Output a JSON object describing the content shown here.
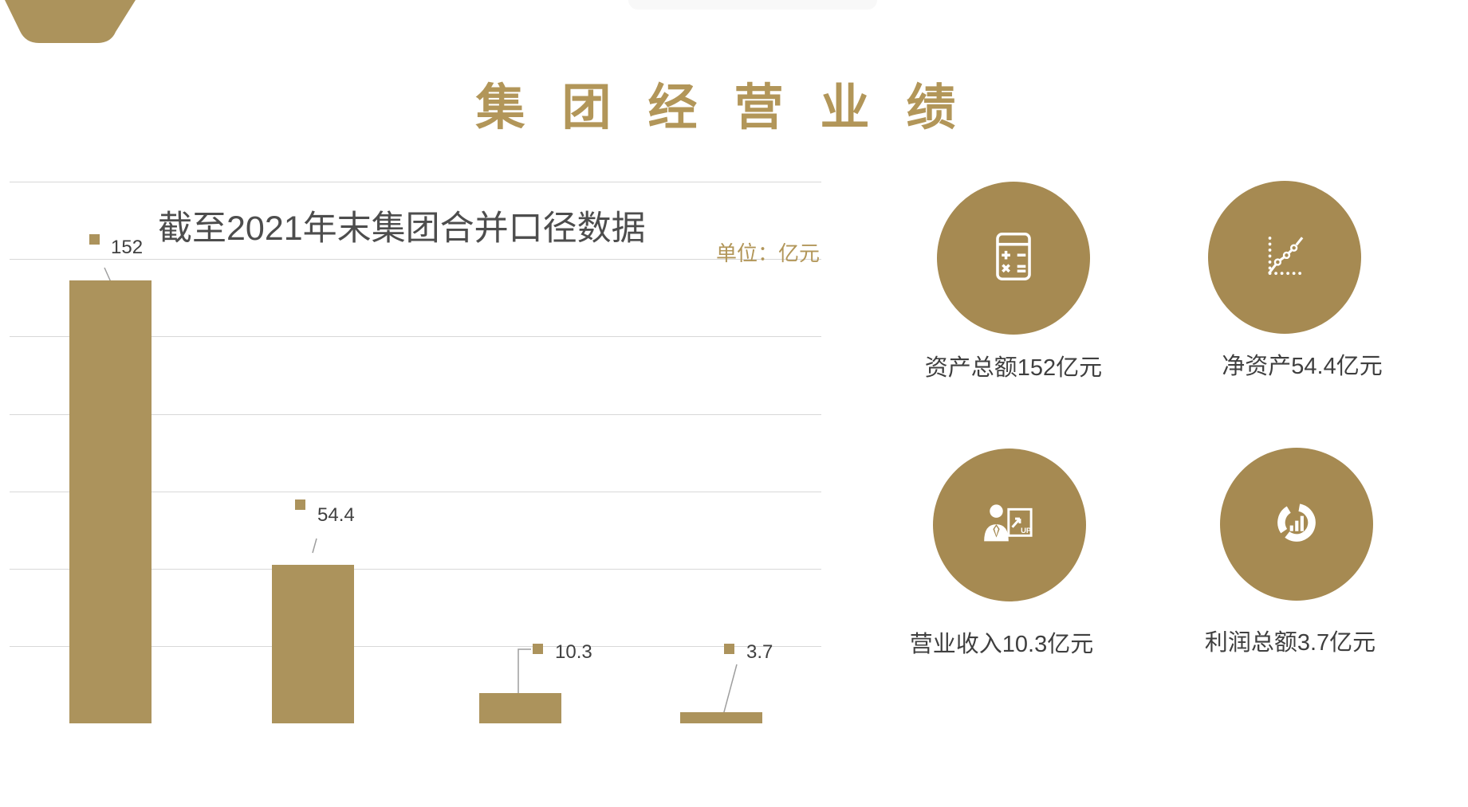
{
  "page": {
    "title": "集团经营业绩"
  },
  "chart_data": {
    "type": "bar",
    "title": "截至2021年末集团合并口径数据",
    "unit_note": "单位：亿元",
    "values": [
      152,
      54.4,
      10.3,
      3.7
    ],
    "value_labels": [
      "152",
      "54.4",
      "10.3",
      "3.7"
    ],
    "xlabel": "",
    "ylabel": "",
    "ylim": [
      0,
      186
    ],
    "grid": true,
    "legend": false
  },
  "stats": [
    {
      "icon": "calculator-icon",
      "label": "资产总额152亿元"
    },
    {
      "icon": "trend-chart-icon",
      "label": "净资产54.4亿元"
    },
    {
      "icon": "presenter-chart-icon",
      "icon_text": "UP",
      "label": "营业收入10.3亿元"
    },
    {
      "icon": "donut-chart-icon",
      "label": "利润总额3.7亿元"
    }
  ],
  "colors": {
    "gold": "#AC935C",
    "circle_gold": "#A68A52",
    "title_gold": "#B29659",
    "text_dark": "#404040",
    "gridline": "#D8D8D8"
  }
}
